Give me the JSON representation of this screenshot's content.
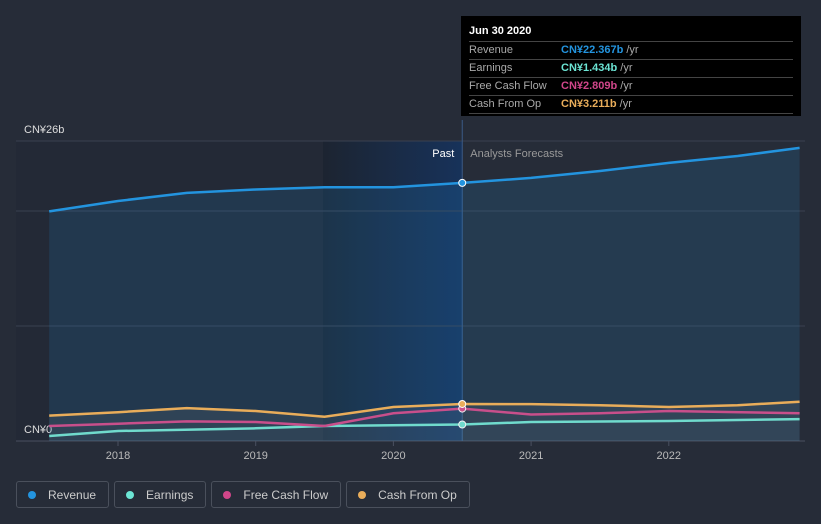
{
  "tooltip": {
    "date": "Jun 30 2020",
    "rows": [
      {
        "label": "Revenue",
        "value": "CN¥22.367b",
        "unit": "/yr",
        "color": "#2394df"
      },
      {
        "label": "Earnings",
        "value": "CN¥1.434b",
        "unit": "/yr",
        "color": "#6ce5d5"
      },
      {
        "label": "Free Cash Flow",
        "value": "CN¥2.809b",
        "unit": "/yr",
        "color": "#d0468a"
      },
      {
        "label": "Cash From Op",
        "value": "CN¥3.211b",
        "unit": "/yr",
        "color": "#e9ad5a"
      }
    ]
  },
  "chart_data": {
    "type": "line",
    "ylabel_top": "CN¥26b",
    "ylabel_bottom": "CN¥0",
    "ylim": [
      0,
      26
    ],
    "xlim": [
      2017.4,
      2022.95
    ],
    "x_ticks": [
      "2018",
      "2019",
      "2020",
      "2021",
      "2022"
    ],
    "past_label": "Past",
    "forecast_label": "Analysts Forecasts",
    "divider_x": 2020.5,
    "series": [
      {
        "name": "Revenue",
        "color": "#2394df",
        "points": [
          [
            2017.5,
            19.9
          ],
          [
            2018,
            20.8
          ],
          [
            2018.5,
            21.5
          ],
          [
            2019,
            21.8
          ],
          [
            2019.5,
            22.0
          ],
          [
            2020,
            22.0
          ],
          [
            2020.5,
            22.37
          ],
          [
            2021,
            22.8
          ],
          [
            2021.5,
            23.4
          ],
          [
            2022,
            24.1
          ],
          [
            2022.5,
            24.7
          ],
          [
            2022.95,
            25.4
          ]
        ]
      },
      {
        "name": "Earnings",
        "color": "#6ce5d5",
        "points": [
          [
            2017.5,
            0.43
          ],
          [
            2018,
            0.87
          ],
          [
            2019,
            1.1
          ],
          [
            2019.5,
            1.3
          ],
          [
            2020.5,
            1.43
          ],
          [
            2021,
            1.65
          ],
          [
            2022,
            1.73
          ],
          [
            2022.95,
            1.9
          ]
        ]
      },
      {
        "name": "Free Cash Flow",
        "color": "#d0468a",
        "points": [
          [
            2017.5,
            1.3
          ],
          [
            2018,
            1.5
          ],
          [
            2018.5,
            1.7
          ],
          [
            2019,
            1.65
          ],
          [
            2019.5,
            1.3
          ],
          [
            2020,
            2.4
          ],
          [
            2020.5,
            2.81
          ],
          [
            2021,
            2.3
          ],
          [
            2021.5,
            2.4
          ],
          [
            2022,
            2.6
          ],
          [
            2022.95,
            2.4
          ]
        ]
      },
      {
        "name": "Cash From Op",
        "color": "#e9ad5a",
        "points": [
          [
            2017.5,
            2.2
          ],
          [
            2018,
            2.5
          ],
          [
            2018.5,
            2.85
          ],
          [
            2019,
            2.6
          ],
          [
            2019.5,
            2.1
          ],
          [
            2020,
            2.95
          ],
          [
            2020.5,
            3.21
          ],
          [
            2021,
            3.2
          ],
          [
            2021.5,
            3.1
          ],
          [
            2022,
            2.95
          ],
          [
            2022.5,
            3.1
          ],
          [
            2022.95,
            3.4
          ]
        ]
      }
    ]
  }
}
